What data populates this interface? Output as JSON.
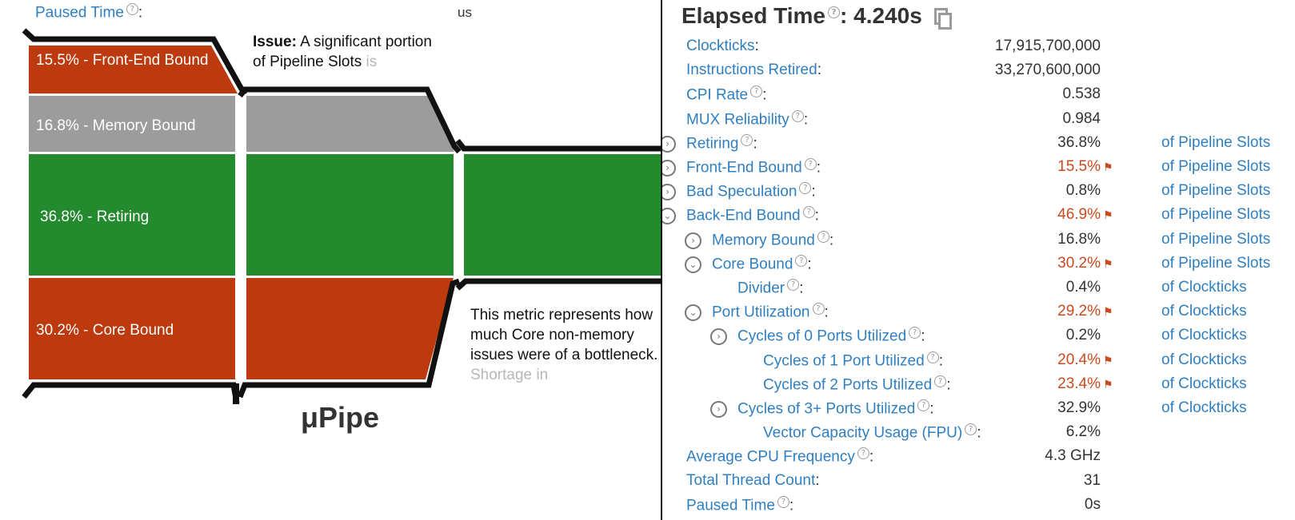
{
  "left_panel": {
    "paused_time_label": "Paused Time",
    "paused_time_value_fragment": "us",
    "segments": {
      "front_end": "15.5% - Front-End Bound",
      "memory": "16.8% - Memory Bound",
      "retiring": "36.8% - Retiring",
      "core": "30.2% - Core Bound"
    },
    "colors": {
      "bound": "#bc3a0d",
      "memory": "#9c9c9c",
      "retiring": "#238a2e",
      "outline": "#111111"
    },
    "issue_bold": "Issue:",
    "issue_text": " A significant portion of Pipeline Slots ",
    "issue_faded": "is",
    "metric_text": "This metric represents how much Core non-memory issues were of a bottleneck. ",
    "metric_faded": "Shortage in",
    "upipe_title": "μPipe"
  },
  "summary": {
    "title": "Elapsed Time",
    "title_value": ": 4.240s",
    "rows": [
      {
        "name": "Clockticks",
        "value": "17,915,700,000",
        "help": false,
        "exp": "",
        "indent": 0,
        "flag": false,
        "unit": ""
      },
      {
        "name": "Instructions Retired",
        "value": "33,270,600,000",
        "help": false,
        "exp": "",
        "indent": 0,
        "flag": false,
        "unit": ""
      },
      {
        "name": "CPI Rate",
        "value": "0.538",
        "help": true,
        "exp": "",
        "indent": 0,
        "flag": false,
        "unit": ""
      },
      {
        "name": "MUX Reliability",
        "value": "0.984",
        "help": true,
        "exp": "",
        "indent": 0,
        "flag": false,
        "unit": ""
      },
      {
        "name": "Retiring",
        "value": "36.8%",
        "help": true,
        "exp": "collapsed",
        "indent": 0,
        "flag": false,
        "unit": "of Pipeline Slots"
      },
      {
        "name": "Front-End Bound",
        "value": "15.5%",
        "help": true,
        "exp": "collapsed",
        "indent": 0,
        "flag": true,
        "unit": "of Pipeline Slots"
      },
      {
        "name": "Bad Speculation",
        "value": "0.8%",
        "help": true,
        "exp": "collapsed",
        "indent": 0,
        "flag": false,
        "unit": "of Pipeline Slots"
      },
      {
        "name": "Back-End Bound",
        "value": "46.9%",
        "help": true,
        "exp": "expanded",
        "indent": 0,
        "flag": true,
        "unit": "of Pipeline Slots"
      },
      {
        "name": "Memory Bound",
        "value": "16.8%",
        "help": true,
        "exp": "collapsed",
        "indent": 1,
        "flag": false,
        "unit": "of Pipeline Slots"
      },
      {
        "name": "Core Bound",
        "value": "30.2%",
        "help": true,
        "exp": "expanded",
        "indent": 1,
        "flag": true,
        "unit": "of Pipeline Slots"
      },
      {
        "name": "Divider",
        "value": "0.4%",
        "help": true,
        "exp": "",
        "indent": 2,
        "flag": false,
        "unit": "of Clockticks"
      },
      {
        "name": "Port Utilization",
        "value": "29.2%",
        "help": true,
        "exp": "expanded",
        "indent": 1,
        "flag": true,
        "unit": "of Clockticks"
      },
      {
        "name": "Cycles of 0 Ports Utilized",
        "value": "0.2%",
        "help": true,
        "exp": "collapsed",
        "indent": 2,
        "flag": false,
        "unit": "of Clockticks"
      },
      {
        "name": "Cycles of 1 Port Utilized",
        "value": "20.4%",
        "help": true,
        "exp": "",
        "indent": 3,
        "flag": true,
        "unit": "of Clockticks"
      },
      {
        "name": "Cycles of 2 Ports Utilized",
        "value": "23.4%",
        "help": true,
        "exp": "",
        "indent": 3,
        "flag": true,
        "unit": "of Clockticks"
      },
      {
        "name": "Cycles of 3+ Ports Utilized",
        "value": "32.9%",
        "help": true,
        "exp": "collapsed",
        "indent": 2,
        "flag": false,
        "unit": "of Clockticks"
      },
      {
        "name": "Vector Capacity Usage (FPU)",
        "value": "6.2%",
        "help": true,
        "exp": "",
        "indent": 3,
        "flag": false,
        "unit": ""
      },
      {
        "name": "Average CPU Frequency",
        "value": "4.3 GHz",
        "help": true,
        "exp": "",
        "indent": 0,
        "flag": false,
        "unit": ""
      },
      {
        "name": "Total Thread Count",
        "value": "31",
        "help": false,
        "exp": "",
        "indent": 0,
        "flag": false,
        "unit": ""
      },
      {
        "name": "Paused Time",
        "value": "0s",
        "help": true,
        "exp": "",
        "indent": 0,
        "flag": false,
        "unit": ""
      }
    ]
  }
}
